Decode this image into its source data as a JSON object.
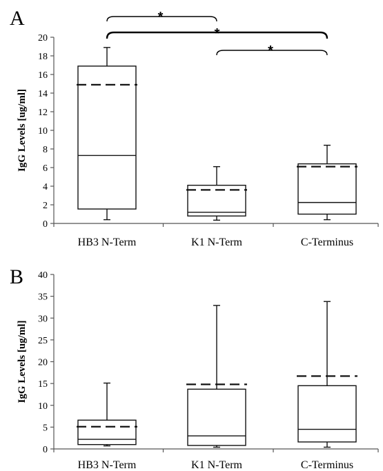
{
  "chart_data": [
    {
      "type": "box",
      "panel": "A",
      "ylabel": "IgG Levels [ug/ml]",
      "ylim": [
        0,
        20
      ],
      "yticks": [
        0,
        2,
        4,
        6,
        8,
        10,
        12,
        14,
        16,
        18,
        20
      ],
      "categories": [
        "HB3 N-Term",
        "K1 N-Term",
        "C-Terminus"
      ],
      "boxes": [
        {
          "min": 0.4,
          "q1": 1.55,
          "median": 7.3,
          "q3": 16.9,
          "max": 18.9,
          "mean": 14.9
        },
        {
          "min": 0.35,
          "q1": 0.8,
          "median": 1.2,
          "q3": 4.1,
          "max": 6.1,
          "mean": 3.6
        },
        {
          "min": 0.4,
          "q1": 1.0,
          "median": 2.25,
          "q3": 6.4,
          "max": 8.4,
          "mean": 6.1
        }
      ],
      "significance": [
        {
          "from": 0,
          "to": 1,
          "label": "*"
        },
        {
          "from": 0,
          "to": 2,
          "label": "*"
        },
        {
          "from": 1,
          "to": 2,
          "label": "*"
        }
      ]
    },
    {
      "type": "box",
      "panel": "B",
      "ylabel": "IgG Levels [ug/ml]",
      "ylim": [
        0,
        40
      ],
      "yticks": [
        0,
        5,
        10,
        15,
        20,
        25,
        30,
        35,
        40
      ],
      "categories": [
        "HB3 N-Term",
        "K1 N-Term",
        "C-Terminus"
      ],
      "boxes": [
        {
          "min": 0.7,
          "q1": 1.0,
          "median": 2.2,
          "q3": 6.6,
          "max": 15.1,
          "mean": 5.1
        },
        {
          "min": 0.4,
          "q1": 0.8,
          "median": 3.0,
          "q3": 13.7,
          "max": 32.9,
          "mean": 14.8
        },
        {
          "min": 0.4,
          "q1": 1.6,
          "median": 4.5,
          "q3": 14.5,
          "max": 33.8,
          "mean": 16.7
        }
      ]
    }
  ]
}
